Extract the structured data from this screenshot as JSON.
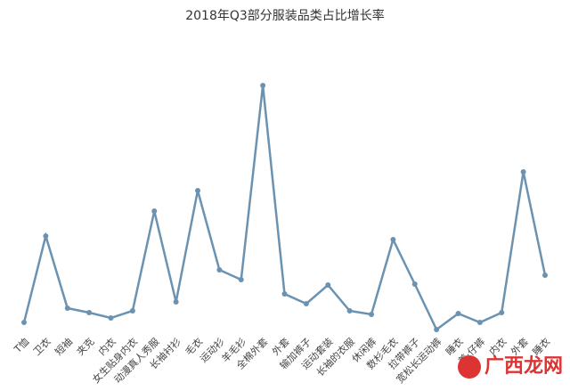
{
  "chart_data": {
    "type": "line",
    "title": "2018年Q3部分服装品类占比增长率",
    "categories": [
      "T恤",
      "卫衣",
      "短袖",
      "夹克",
      "内衣",
      "女生贴身内衣",
      "动漫真人秀服",
      "长袖衬衫",
      "毛衣",
      "运动衫",
      "羊毛衫",
      "全棉外套",
      "外套",
      "输加裤子",
      "运动套装",
      "长袖的衣服",
      "休闲裤",
      "数杉毛衣",
      "拉带裤子",
      "宽松长运动裤",
      "睡衣",
      "姜·仔裤",
      "内衣",
      "外套",
      "睡衣"
    ],
    "series": [
      {
        "name": "占比增长率",
        "color": "#6b93b1",
        "values": [
          8,
          105,
          24,
          19,
          13,
          21,
          133,
          31,
          156,
          67,
          56,
          274,
          40,
          29,
          50,
          21,
          17,
          101,
          51,
          0,
          18,
          8,
          19,
          177,
          61
        ]
      }
    ]
  },
  "watermark": "广西龙网"
}
